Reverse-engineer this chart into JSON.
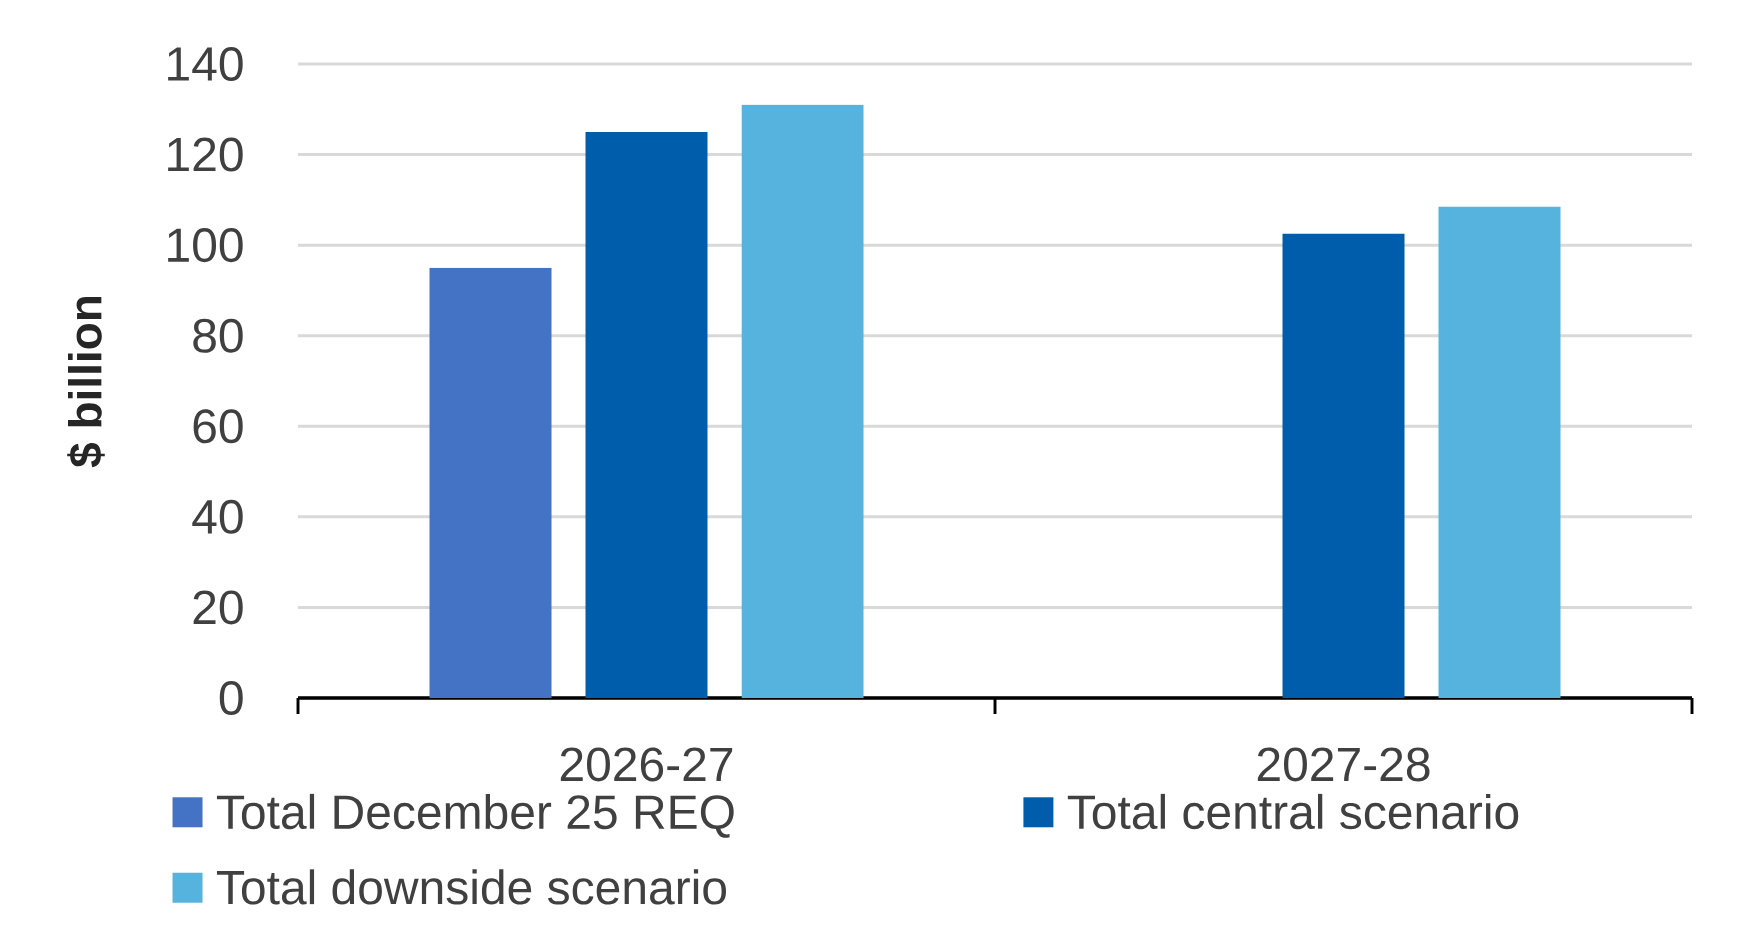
{
  "chart_data": {
    "type": "bar",
    "ylabel": "$ billion",
    "categories": [
      "2026-27",
      "2027-28"
    ],
    "series": [
      {
        "name": "Total December 25 REQ",
        "color": "#4472c4",
        "values": [
          95,
          null
        ]
      },
      {
        "name": "Total central scenario",
        "color": "#005dac",
        "values": [
          125,
          102.5
        ]
      },
      {
        "name": "Total downside scenario",
        "color": "#56b3de",
        "values": [
          131,
          108.5
        ]
      }
    ],
    "ylim": [
      0,
      140
    ],
    "yticks": [
      0,
      20,
      40,
      60,
      80,
      100,
      120,
      140
    ],
    "grid": "y",
    "legend": "bottom"
  }
}
